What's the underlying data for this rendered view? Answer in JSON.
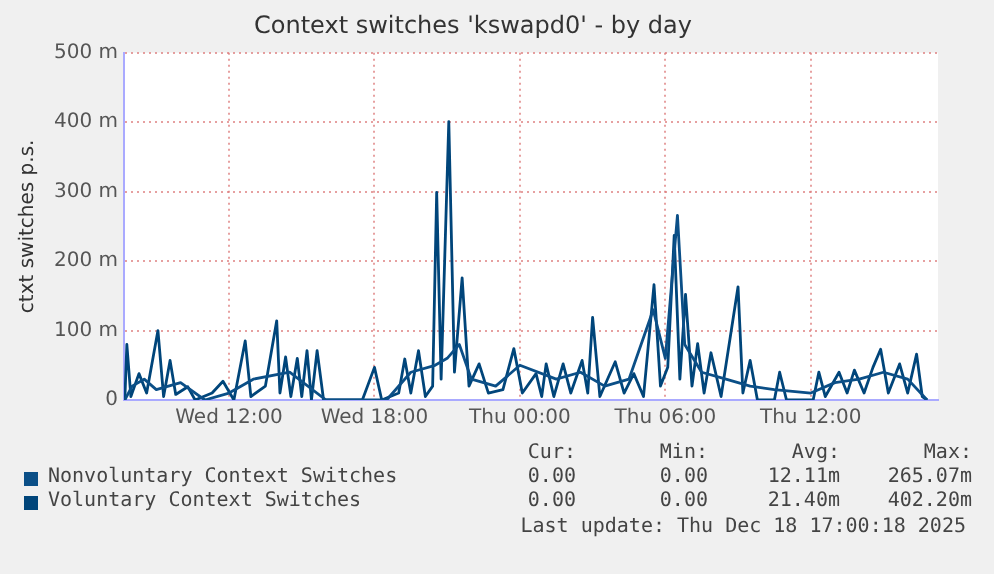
{
  "chart_data": {
    "type": "line",
    "title": "Context switches 'kswapd0' - by day",
    "ylabel": "ctxt switches p.s.",
    "xlim": [
      "2025-12-17T07:40",
      "2025-12-18T17:15"
    ],
    "xticks": [
      {
        "value": "2025-12-17T12:00",
        "label": "Wed 12:00"
      },
      {
        "value": "2025-12-17T18:00",
        "label": "Wed 18:00"
      },
      {
        "value": "2025-12-18T00:00",
        "label": "Thu 00:00"
      },
      {
        "value": "2025-12-18T06:00",
        "label": "Thu 06:00"
      },
      {
        "value": "2025-12-18T12:00",
        "label": "Thu 12:00"
      }
    ],
    "ylim": [
      0,
      500
    ],
    "yticks": [
      0,
      {
        "value": 100,
        "label": "100 m"
      },
      {
        "value": 200,
        "label": "200 m"
      },
      {
        "value": 300,
        "label": "300 m"
      },
      {
        "value": 400,
        "label": "400 m"
      },
      {
        "value": 500,
        "label": "500 m"
      }
    ],
    "grid": true,
    "legend": "bottom",
    "marker": "none",
    "line_style": "solid",
    "series": [
      {
        "name": "Nonvoluntary Context Switches",
        "color": "#0b4f87",
        "x": [
          "2025-12-17T07:42",
          "2025-12-17T08:00",
          "2025-12-17T08:30",
          "2025-12-17T09:00",
          "2025-12-17T10:00",
          "2025-12-17T11:00",
          "2025-12-17T12:00",
          "2025-12-17T13:00",
          "2025-12-17T14:30",
          "2025-12-17T16:00",
          "2025-12-17T18:30",
          "2025-12-17T19:30",
          "2025-12-17T20:30",
          "2025-12-17T21:00",
          "2025-12-17T21:30",
          "2025-12-17T22:00",
          "2025-12-17T23:00",
          "2025-12-18T00:00",
          "2025-12-18T01:30",
          "2025-12-18T02:30",
          "2025-12-18T03:30",
          "2025-12-18T04:30",
          "2025-12-18T05:30",
          "2025-12-18T06:00",
          "2025-12-18T06:30",
          "2025-12-18T06:48",
          "2025-12-18T07:30",
          "2025-12-18T08:30",
          "2025-12-18T09:30",
          "2025-12-18T10:30",
          "2025-12-18T12:00",
          "2025-12-18T13:00",
          "2025-12-18T14:00",
          "2025-12-18T15:00",
          "2025-12-18T16:00",
          "2025-12-18T16:48"
        ],
        "values": [
          0,
          20,
          30,
          15,
          25,
          0,
          10,
          30,
          40,
          0,
          0,
          40,
          50,
          60,
          80,
          30,
          20,
          50,
          30,
          40,
          20,
          30,
          130,
          60,
          266,
          80,
          40,
          30,
          20,
          15,
          10,
          25,
          30,
          40,
          30,
          0
        ]
      },
      {
        "name": "Voluntary Context Switches",
        "color": "#00457a",
        "x": [
          "2025-12-17T07:42",
          "2025-12-17T07:47",
          "2025-12-17T07:57",
          "2025-12-17T08:17",
          "2025-12-17T08:36",
          "2025-12-17T09:04",
          "2025-12-17T09:18",
          "2025-12-17T09:34",
          "2025-12-17T09:48",
          "2025-12-17T10:18",
          "2025-12-17T10:36",
          "2025-12-17T11:18",
          "2025-12-17T11:45",
          "2025-12-17T12:12",
          "2025-12-17T12:40",
          "2025-12-17T12:54",
          "2025-12-17T13:30",
          "2025-12-17T13:58",
          "2025-12-17T14:06",
          "2025-12-17T14:20",
          "2025-12-17T14:33",
          "2025-12-17T14:49",
          "2025-12-17T15:00",
          "2025-12-17T15:13",
          "2025-12-17T15:24",
          "2025-12-17T15:38",
          "2025-12-17T15:54",
          "2025-12-17T17:30",
          "2025-12-17T18:00",
          "2025-12-17T18:18",
          "2025-12-17T19:00",
          "2025-12-17T19:15",
          "2025-12-17T19:30",
          "2025-12-17T19:49",
          "2025-12-17T20:06",
          "2025-12-17T20:24",
          "2025-12-17T20:34",
          "2025-12-17T20:45",
          "2025-12-17T21:04",
          "2025-12-17T21:18",
          "2025-12-17T21:37",
          "2025-12-17T21:54",
          "2025-12-17T22:19",
          "2025-12-17T22:42",
          "2025-12-17T23:18",
          "2025-12-17T23:45",
          "2025-12-18T00:06",
          "2025-12-18T00:40",
          "2025-12-18T00:54",
          "2025-12-18T01:05",
          "2025-12-18T01:24",
          "2025-12-18T01:47",
          "2025-12-18T02:06",
          "2025-12-18T02:34",
          "2025-12-18T02:48",
          "2025-12-18T03:00",
          "2025-12-18T03:18",
          "2025-12-18T03:56",
          "2025-12-18T04:18",
          "2025-12-18T04:42",
          "2025-12-18T05:06",
          "2025-12-18T05:32",
          "2025-12-18T05:48",
          "2025-12-18T06:06",
          "2025-12-18T06:22",
          "2025-12-18T06:36",
          "2025-12-18T06:50",
          "2025-12-18T07:06",
          "2025-12-18T07:20",
          "2025-12-18T07:36",
          "2025-12-18T07:53",
          "2025-12-18T08:18",
          "2025-12-18T09:00",
          "2025-12-18T09:12",
          "2025-12-18T09:30",
          "2025-12-18T09:48",
          "2025-12-18T10:30",
          "2025-12-18T10:43",
          "2025-12-18T11:00",
          "2025-12-18T12:06",
          "2025-12-18T12:20",
          "2025-12-18T12:36",
          "2025-12-18T13:10",
          "2025-12-18T13:30",
          "2025-12-18T13:48",
          "2025-12-18T14:12",
          "2025-12-18T14:34",
          "2025-12-18T14:53",
          "2025-12-18T15:12",
          "2025-12-18T15:40",
          "2025-12-18T16:00",
          "2025-12-18T16:22",
          "2025-12-18T16:36",
          "2025-12-18T16:48"
        ],
        "values": [
          0,
          80,
          5,
          38,
          10,
          100,
          5,
          57,
          8,
          19,
          0,
          10,
          27,
          0,
          85,
          5,
          20,
          114,
          10,
          62,
          5,
          60,
          5,
          71,
          0,
          71,
          0,
          0,
          47,
          0,
          10,
          59,
          10,
          71,
          5,
          20,
          299,
          30,
          401,
          40,
          176,
          20,
          52,
          10,
          15,
          74,
          10,
          38,
          5,
          52,
          5,
          52,
          10,
          57,
          10,
          119,
          5,
          55,
          10,
          38,
          5,
          166,
          20,
          47,
          237,
          30,
          152,
          20,
          81,
          10,
          68,
          5,
          163,
          10,
          57,
          0,
          0,
          40,
          0,
          0,
          40,
          5,
          40,
          10,
          43,
          10,
          47,
          73,
          10,
          52,
          10,
          66,
          5,
          0
        ]
      }
    ],
    "annotations": [
      "Cur:",
      "Min:",
      "Avg:",
      "Max:",
      "0.00",
      "0.00",
      "12.11m",
      "265.07m",
      "0.00",
      "0.00",
      "21.40m",
      "402.20m",
      "Last update: Thu Dec 18 17:00:18 2025"
    ]
  }
}
